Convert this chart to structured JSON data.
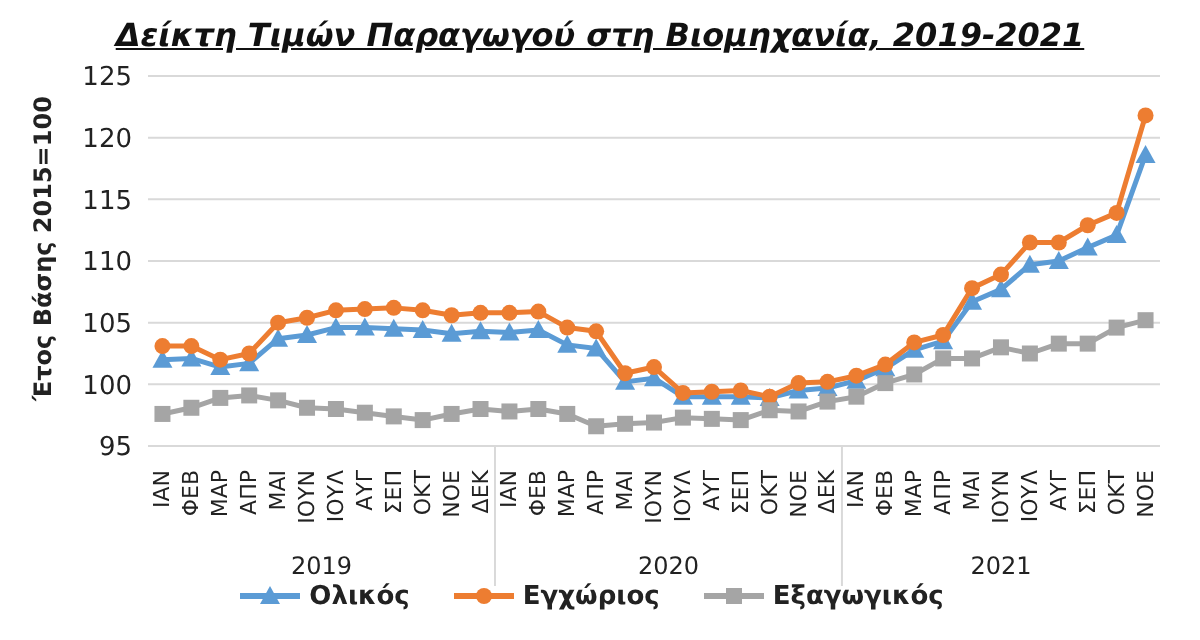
{
  "chart_data": {
    "type": "line",
    "title": "Δείκτη Τιμών Παραγωγού στη Βιομηχανία, 2019-2021",
    "ylabel": "Έτος Βάσης 2015=100",
    "categories": [
      "ΙΑΝ",
      "ΦΕΒ",
      "ΜΑΡ",
      "ΑΠΡ",
      "ΜΑΙ",
      "ΙΟΥΝ",
      "ΙΟΥΛ",
      "ΑΥΓ",
      "ΣΕΠ",
      "ΟΚΤ",
      "ΝΟΕ",
      "ΔΕΚ",
      "ΙΑΝ",
      "ΦΕΒ",
      "ΜΑΡ",
      "ΑΠΡ",
      "ΜΑΙ",
      "ΙΟΥΝ",
      "ΙΟΥΛ",
      "ΑΥΓ",
      "ΣΕΠ",
      "ΟΚΤ",
      "ΝΟΕ",
      "ΔΕΚ",
      "ΙΑΝ",
      "ΦΕΒ",
      "ΜΑΡ",
      "ΑΠΡ",
      "ΜΑΙ",
      "ΙΟΥΝ",
      "ΙΟΥΛ",
      "ΑΥΓ",
      "ΣΕΠ",
      "ΟΚΤ",
      "ΝΟΕ"
    ],
    "annotations": [
      "2019",
      "2020",
      "2021"
    ],
    "series": [
      {
        "name": "Ολικός",
        "color": "#5b9bd5",
        "marker": "triangle",
        "values": [
          102.0,
          102.1,
          101.4,
          101.7,
          103.7,
          104.0,
          104.6,
          104.6,
          104.5,
          104.4,
          104.1,
          104.3,
          104.2,
          104.4,
          103.2,
          102.9,
          100.2,
          100.5,
          99.0,
          99.0,
          99.0,
          98.9,
          99.5,
          99.7,
          100.3,
          101.3,
          102.8,
          103.5,
          106.7,
          107.7,
          109.7,
          110.0,
          111.1,
          112.1,
          118.6
        ]
      },
      {
        "name": "Εγχώριος",
        "color": "#ed7d31",
        "marker": "circle",
        "values": [
          103.1,
          103.1,
          102.0,
          102.5,
          105.0,
          105.4,
          106.0,
          106.1,
          106.2,
          106.0,
          105.6,
          105.8,
          105.8,
          105.9,
          104.6,
          104.3,
          100.9,
          101.4,
          99.3,
          99.4,
          99.5,
          99.0,
          100.1,
          100.2,
          100.7,
          101.6,
          103.4,
          104.0,
          107.8,
          108.9,
          111.5,
          111.5,
          112.9,
          113.9,
          121.8
        ]
      },
      {
        "name": "Εξαγωγικός",
        "color": "#a5a5a5",
        "marker": "square",
        "values": [
          97.6,
          98.1,
          98.9,
          99.1,
          98.7,
          98.1,
          98.0,
          97.7,
          97.4,
          97.1,
          97.6,
          98.0,
          97.8,
          98.0,
          97.6,
          96.6,
          96.8,
          96.9,
          97.3,
          97.2,
          97.1,
          97.9,
          97.8,
          98.6,
          99.0,
          100.1,
          100.8,
          102.1,
          102.1,
          103.0,
          102.5,
          103.3,
          103.3,
          104.6,
          105.2
        ]
      }
    ],
    "ylim": [
      95,
      125
    ],
    "yticks": [
      95,
      100,
      105,
      110,
      115,
      120,
      125
    ],
    "grid": "y",
    "legend": "bottom"
  }
}
